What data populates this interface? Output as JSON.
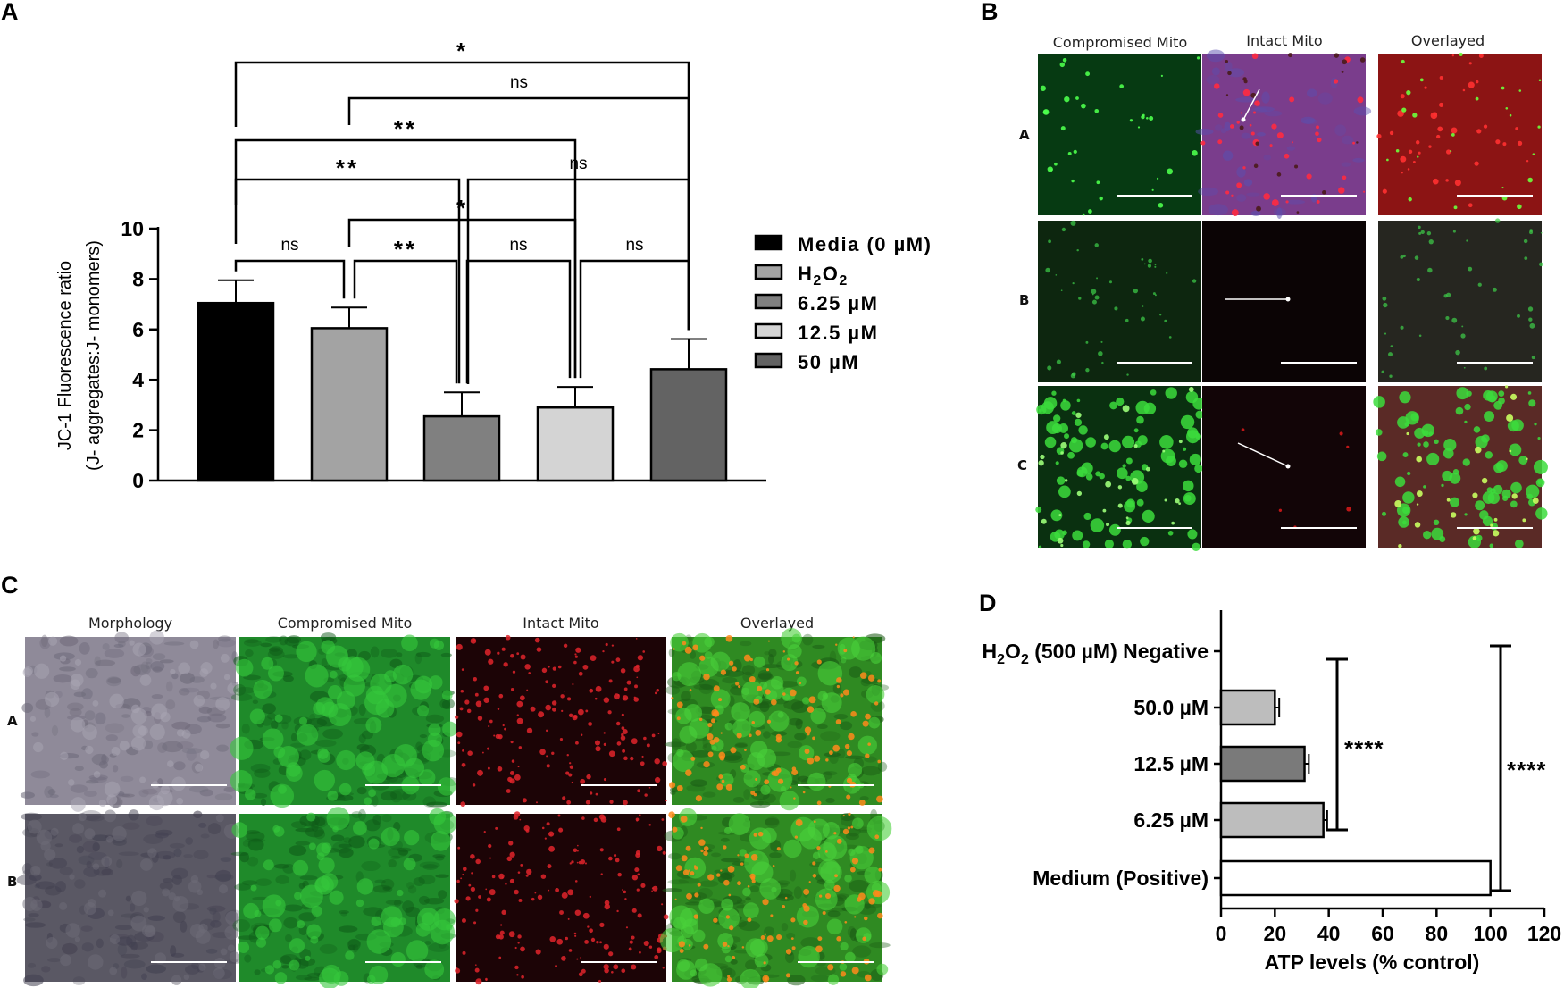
{
  "panels": {
    "a": {
      "label": "A",
      "chart_data": {
        "type": "bar",
        "ylabel_line1": "JC-1 Fluorescence ratio",
        "ylabel_line2": "(J- aggregates:J- monomers)",
        "ylim": [
          0,
          10
        ],
        "yticks": [
          "0",
          "2",
          "4",
          "6",
          "8",
          "10"
        ],
        "categories": [
          "Media (0 µM)",
          "H2O2",
          "6.25 µM",
          "12.5 µM",
          "50 µM"
        ],
        "values": [
          7.05,
          6.05,
          2.55,
          2.9,
          4.42
        ],
        "errors": [
          0.9,
          0.82,
          0.95,
          0.82,
          1.2
        ],
        "colors": [
          "#000000",
          "#a3a3a3",
          "#808080",
          "#d4d4d4",
          "#636363"
        ],
        "legend": [
          {
            "text": "Media (0 µM)"
          },
          {
            "text": "H",
            "sub": "2",
            "text2": "O",
            "sub2": "2"
          },
          {
            "text": "6.25 µM"
          },
          {
            "text": "12.5 µM"
          },
          {
            "text": "50 µM"
          }
        ],
        "legend_position": "right",
        "comparisons": [
          {
            "pair": [
              1,
              5
            ],
            "label": "*"
          },
          {
            "pair": [
              2,
              5
            ],
            "label": "ns"
          },
          {
            "pair": [
              1,
              4
            ],
            "label": "**"
          },
          {
            "pair": [
              1,
              3
            ],
            "label": "**"
          },
          {
            "pair": [
              3,
              5
            ],
            "label": "ns"
          },
          {
            "pair": [
              2,
              4
            ],
            "label": "*"
          },
          {
            "pair": [
              1,
              2
            ],
            "label": "ns"
          },
          {
            "pair": [
              2,
              3
            ],
            "label": "**"
          },
          {
            "pair": [
              3,
              4
            ],
            "label": "ns"
          },
          {
            "pair": [
              4,
              5
            ],
            "label": "ns"
          }
        ]
      }
    },
    "b": {
      "label": "B",
      "headers": [
        "Compromised Mito",
        "Intact Mito",
        "Overlayed"
      ],
      "rows": [
        "A",
        "B",
        "C"
      ]
    },
    "c": {
      "label": "C",
      "headers": [
        "Morphology",
        "Compromised Mito",
        "Intact Mito",
        "Overlayed"
      ],
      "rows": [
        "A",
        "B"
      ]
    },
    "d": {
      "label": "D",
      "chart_data": {
        "type": "bar",
        "orientation": "horizontal",
        "xlabel": "ATP levels (% control)",
        "xlim": [
          0,
          120
        ],
        "xticks": [
          "0",
          "20",
          "40",
          "60",
          "80",
          "100",
          "120"
        ],
        "categories": [
          "H2O2 (500 µM) Negative",
          "50.0 µM",
          "12.5 µM",
          "6.25 µM",
          "Medium (Positive)"
        ],
        "category_labels": [
          "(500 µM) Negative",
          "50.0 µM",
          "12.5 µM",
          "6.25 µM",
          "Medium (Positive)"
        ],
        "h2o2_prefix": {
          "h": "H",
          "sub1": "2",
          "o": "O",
          "sub2": "2"
        },
        "values": [
          0.5,
          20,
          31,
          38,
          100
        ],
        "errors": [
          0,
          1.6,
          1.6,
          1.4,
          0
        ],
        "colors": [
          "#ffffff",
          "#bdbdbd",
          "#7a7a7a",
          "#bdbdbd",
          "#ffffff"
        ],
        "significance": [
          "****",
          "****"
        ]
      }
    }
  }
}
